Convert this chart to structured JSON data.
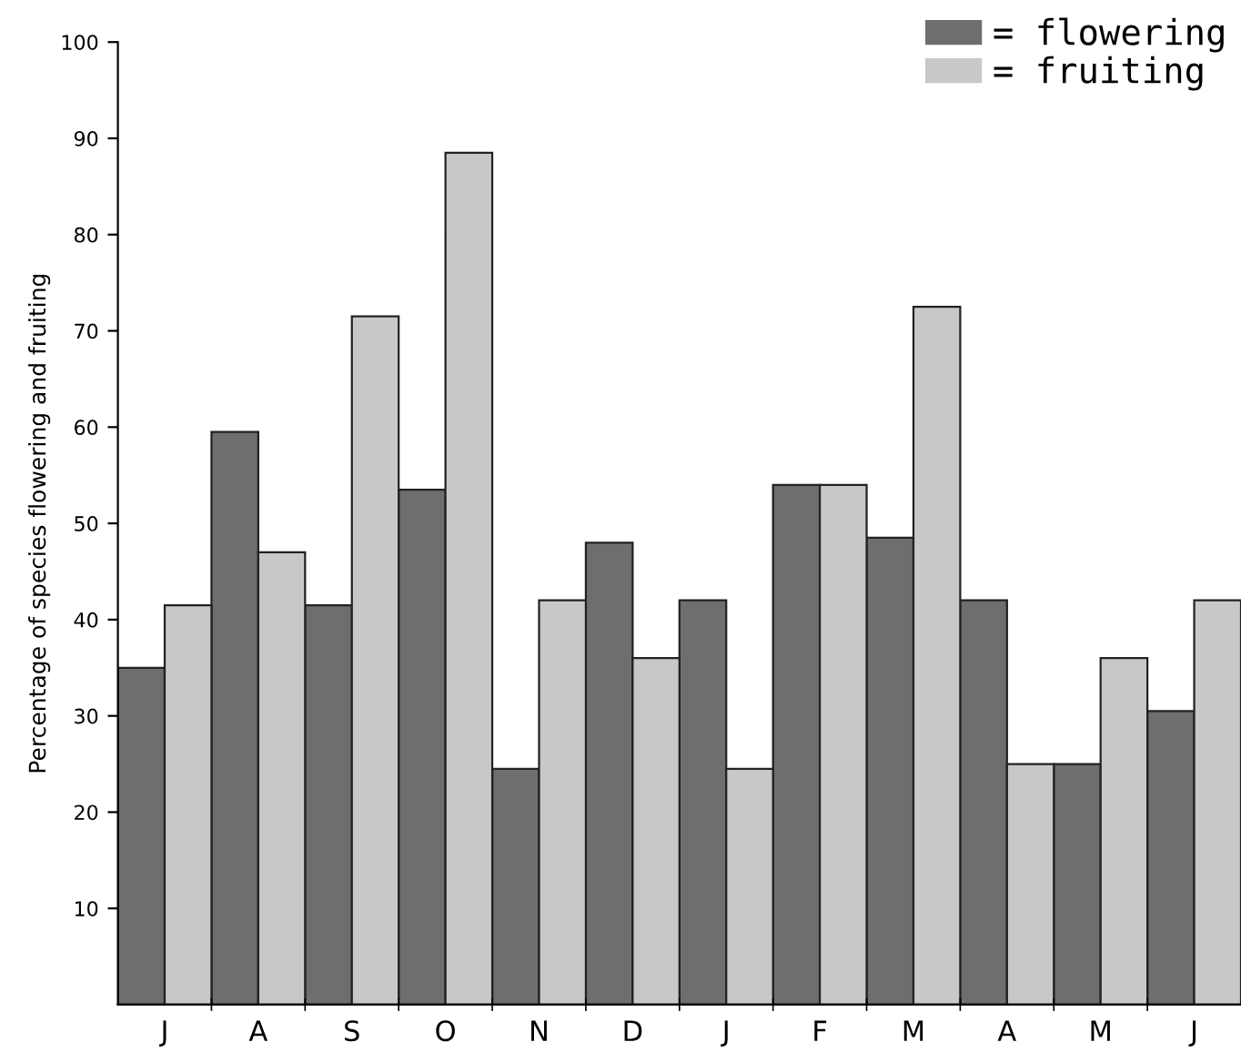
{
  "chart_data": {
    "type": "bar",
    "ylabel": "Percentage of species flowering and fruiting",
    "categories": [
      "J",
      "A",
      "S",
      "O",
      "N",
      "D",
      "J",
      "F",
      "M",
      "A",
      "M",
      "J"
    ],
    "series": [
      {
        "name": "= flowering",
        "color": "#6e6e6e",
        "values": [
          35,
          59.5,
          41.5,
          53.5,
          24.5,
          48,
          42,
          54,
          48.5,
          42,
          25,
          30.5
        ]
      },
      {
        "name": "= fruiting",
        "color": "#c8c8c8",
        "values": [
          41.5,
          47,
          71.5,
          88.5,
          42,
          36,
          24.5,
          54,
          72.5,
          25,
          36,
          42
        ]
      }
    ],
    "ylim": [
      0,
      100
    ],
    "yticks": [
      10,
      20,
      30,
      40,
      50,
      60,
      70,
      80,
      90,
      100
    ],
    "grid": false,
    "legend": "top right"
  }
}
